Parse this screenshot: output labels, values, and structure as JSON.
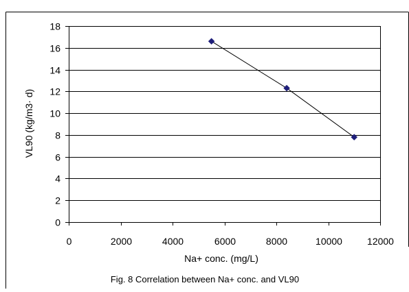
{
  "chart_data": {
    "type": "scatter",
    "title": "",
    "caption": "Fig. 8 Correlation between Na+ conc. and VL90",
    "xlabel": "Na+ conc. (mg/L)",
    "ylabel": "VL90 (kg/m3· d)",
    "xlim": [
      0,
      12000
    ],
    "ylim": [
      0,
      18
    ],
    "xticks": [
      0,
      2000,
      4000,
      6000,
      8000,
      10000,
      12000
    ],
    "yticks": [
      0,
      2,
      4,
      6,
      8,
      10,
      12,
      14,
      16,
      18
    ],
    "grid": "horizontal",
    "legend": "none",
    "series": [
      {
        "points": [
          {
            "x": 5500,
            "y": 16.6
          },
          {
            "x": 8400,
            "y": 12.3
          },
          {
            "x": 11000,
            "y": 7.8
          }
        ],
        "marker": "diamond",
        "marker_color": "#1f1f7a",
        "line_color": "#000000"
      }
    ]
  }
}
